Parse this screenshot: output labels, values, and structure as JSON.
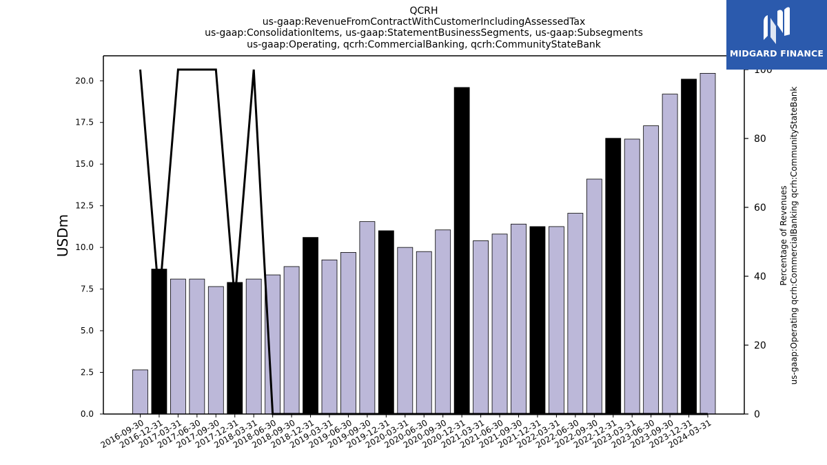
{
  "brand": {
    "name": "MIDGARD FINANCE",
    "colors": {
      "background": "#2b5aad",
      "text": "#ffffff"
    }
  },
  "chart_data": {
    "type": "bar",
    "title_lines": [
      "QCRH",
      "us-gaap:RevenueFromContractWithCustomerIncludingAssessedTax",
      "us-gaap:ConsolidationItems, us-gaap:StatementBusinessSegments, us-gaap:Subsegments",
      "us-gaap:Operating, qcrh:CommercialBanking, qcrh:CommunityStateBank"
    ],
    "ylabel": "USDm",
    "ylabel_right_lines": [
      "Percentage of Revenues",
      "us-gaap:Operating qcrh:CommercialBanking qcrh:CommunityStateBank"
    ],
    "categories": [
      "2016-09-30",
      "2016-12-31",
      "2017-03-31",
      "2017-06-30",
      "2017-09-30",
      "2017-12-31",
      "2018-03-31",
      "2018-06-30",
      "2018-09-30",
      "2018-12-31",
      "2019-03-31",
      "2019-06-30",
      "2019-09-30",
      "2019-12-31",
      "2020-03-31",
      "2020-06-30",
      "2020-09-30",
      "2020-12-31",
      "2021-03-31",
      "2021-06-30",
      "2021-09-30",
      "2021-12-31",
      "2022-03-31",
      "2022-06-30",
      "2022-09-30",
      "2022-12-31",
      "2023-03-31",
      "2023-06-30",
      "2023-09-30",
      "2023-12-31",
      "2024-03-31"
    ],
    "values": [
      2.65,
      8.7,
      8.1,
      8.1,
      7.65,
      7.9,
      8.1,
      8.35,
      8.85,
      10.6,
      9.25,
      9.7,
      11.55,
      11.0,
      10.0,
      9.75,
      11.05,
      19.6,
      10.4,
      10.8,
      11.4,
      11.25,
      11.25,
      12.05,
      14.1,
      16.55,
      16.5,
      17.3,
      19.2,
      20.1,
      20.45
    ],
    "bar_kinds": [
      "q",
      "fy",
      "q",
      "q",
      "q",
      "fy",
      "q",
      "q",
      "q",
      "fy",
      "q",
      "q",
      "q",
      "fy",
      "q",
      "q",
      "q",
      "fy",
      "q",
      "q",
      "q",
      "fy",
      "q",
      "q",
      "q",
      "fy",
      "q",
      "q",
      "q",
      "fy",
      "q"
    ],
    "colors": {
      "q": "#bcb8d9",
      "fy": "#000000",
      "edge": "#000000",
      "line": "#000000"
    },
    "ylim": [
      0,
      21.5
    ],
    "yticks": [
      "0.0",
      "2.5",
      "5.0",
      "7.5",
      "10.0",
      "12.5",
      "15.0",
      "17.5",
      "20.0"
    ],
    "series_right": {
      "values": [
        100,
        33,
        100,
        100,
        100,
        33,
        100,
        0,
        0,
        0,
        0,
        0,
        0,
        0,
        0,
        0,
        0,
        0,
        0,
        0,
        0,
        0,
        0,
        0,
        0,
        0,
        0,
        0,
        0,
        0,
        0
      ],
      "ylim": [
        0,
        104
      ],
      "yticks": [
        "0",
        "20",
        "40",
        "60",
        "80",
        "100"
      ]
    }
  }
}
